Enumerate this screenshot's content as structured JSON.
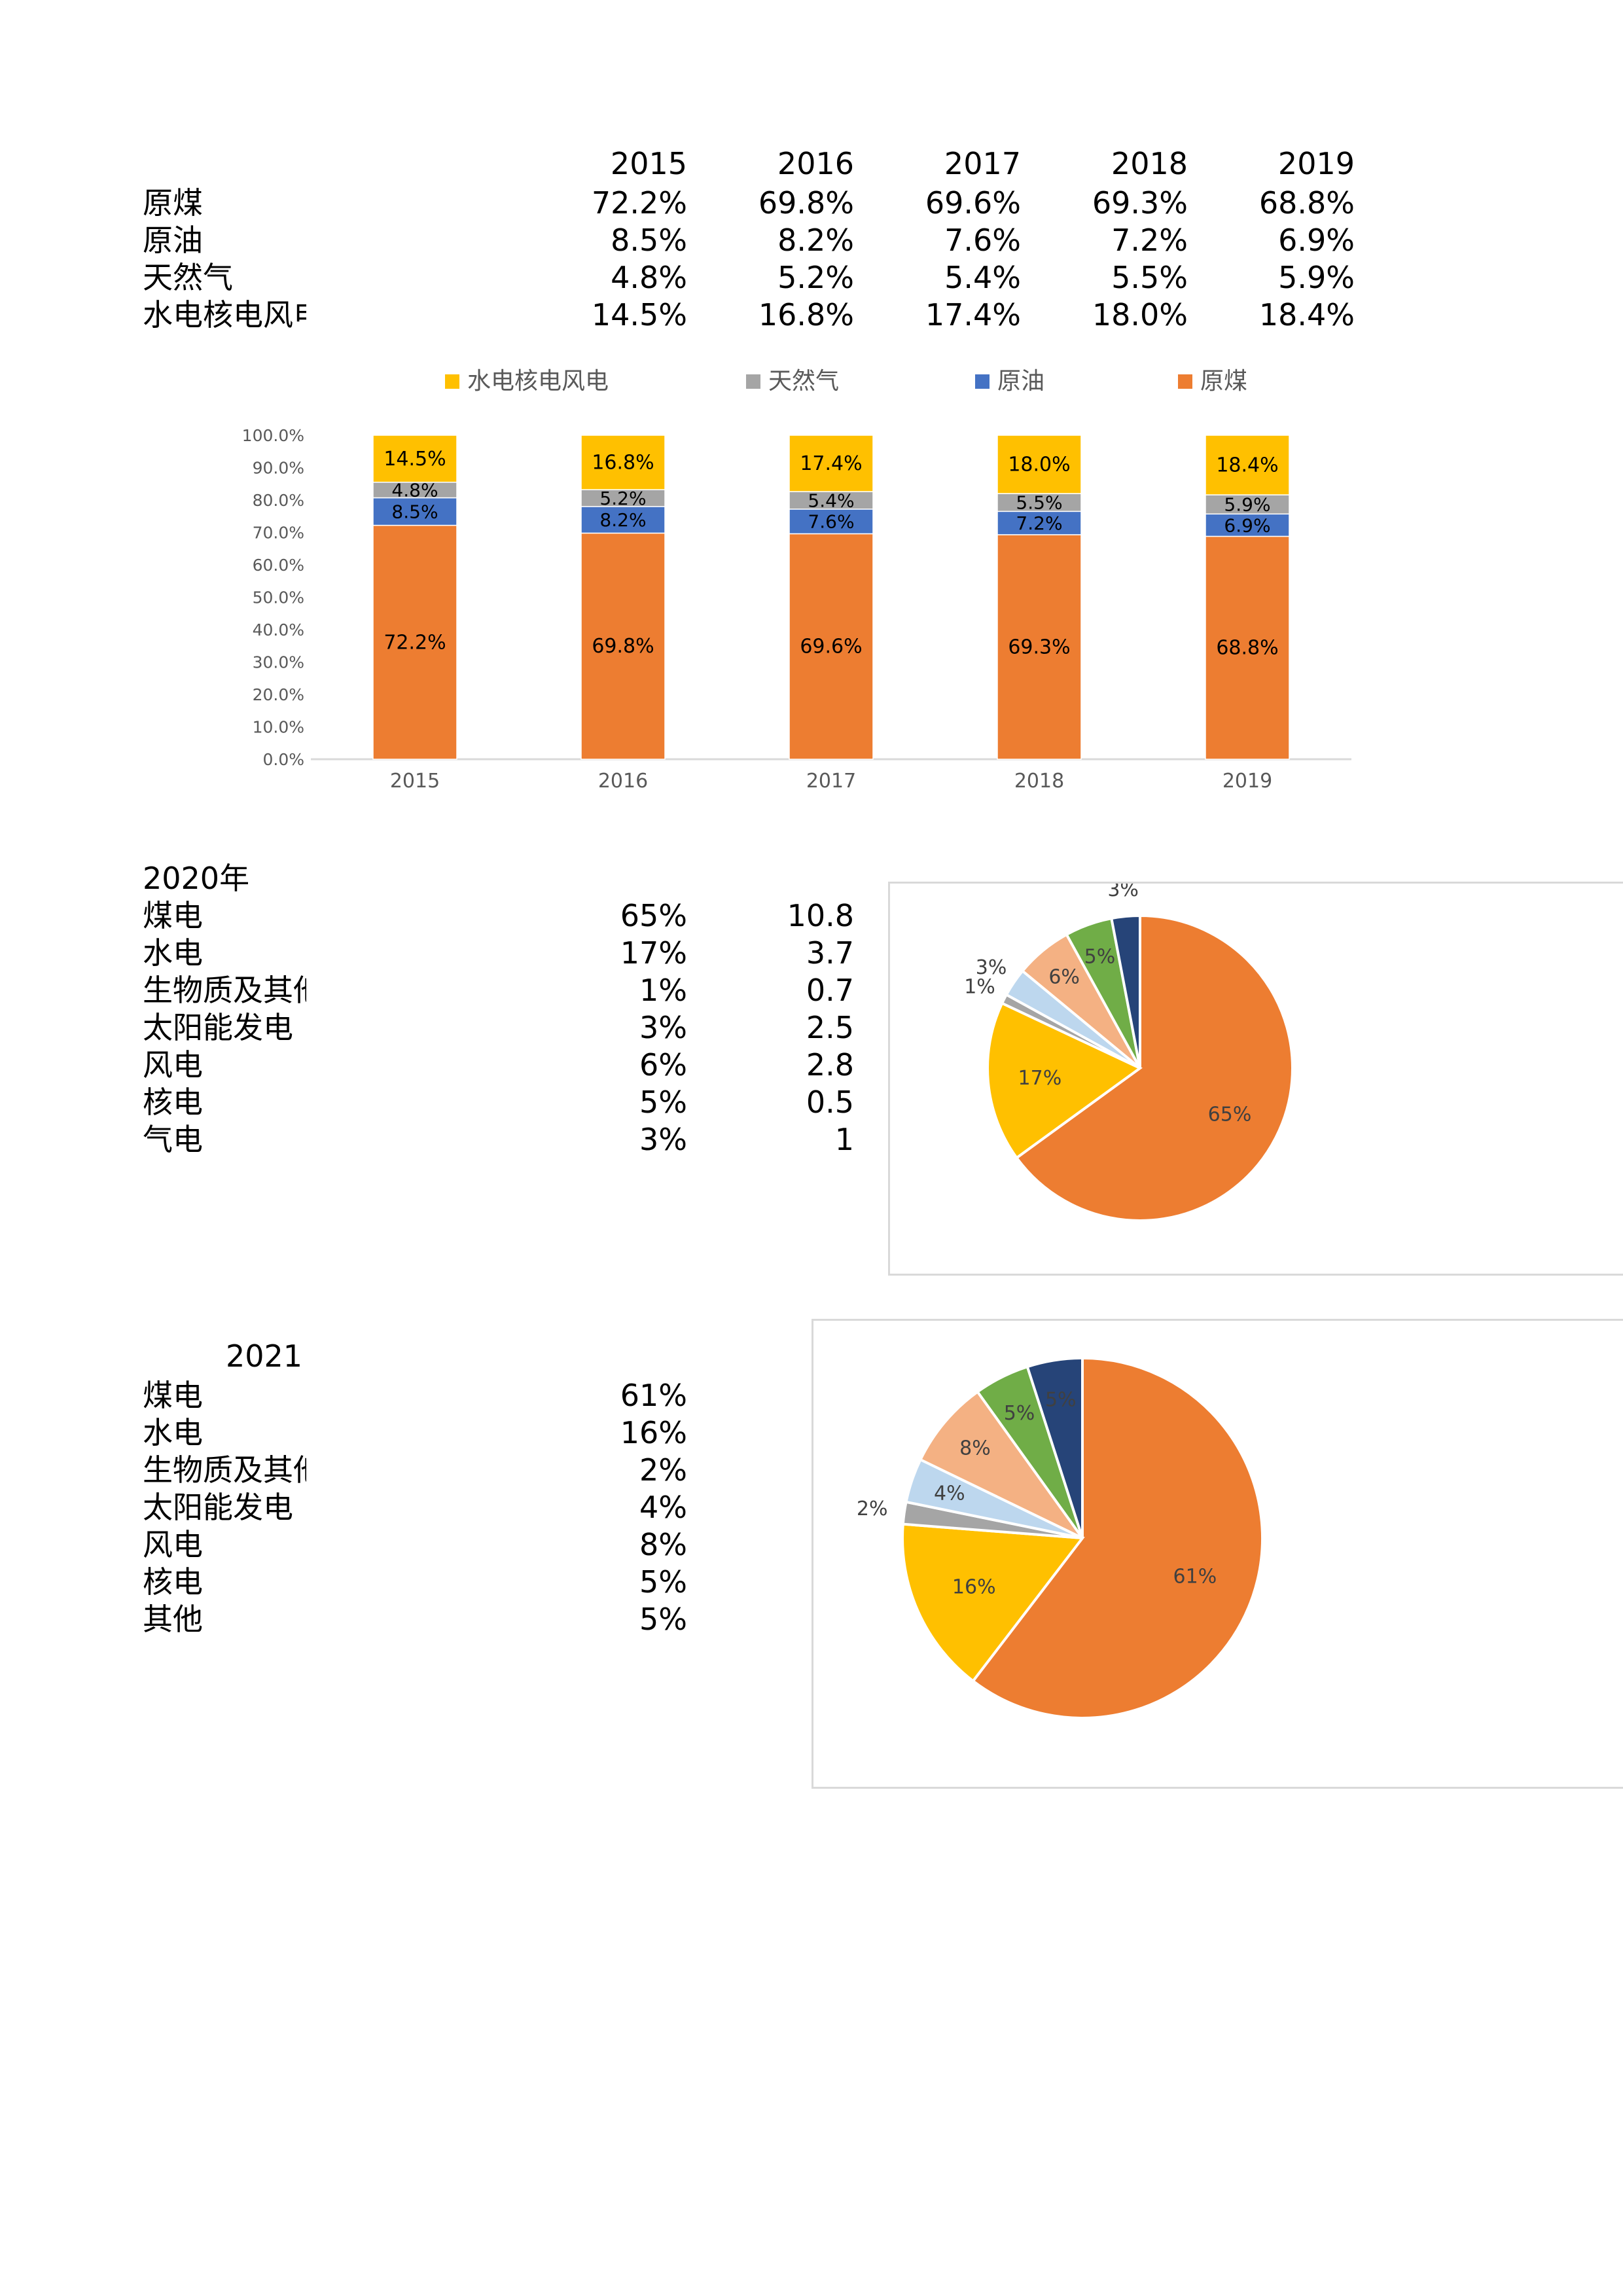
{
  "table1": {
    "years": [
      "2015",
      "2016",
      "2017",
      "2018",
      "2019"
    ],
    "rows": [
      {
        "label": "原煤",
        "values": [
          "72.2%",
          "69.8%",
          "69.6%",
          "69.3%",
          "68.8%"
        ]
      },
      {
        "label": "原油",
        "values": [
          "8.5%",
          "8.2%",
          "7.6%",
          "7.2%",
          "6.9%"
        ]
      },
      {
        "label": "天然气",
        "values": [
          "4.8%",
          "5.2%",
          "5.4%",
          "5.5%",
          "5.9%"
        ]
      },
      {
        "label": "水电核电风电",
        "values": [
          "14.5%",
          "16.8%",
          "17.4%",
          "18.0%",
          "18.4%"
        ]
      }
    ]
  },
  "table2": {
    "title": "2020年",
    "rows": [
      {
        "label": "煤电",
        "pct": "65%",
        "val": "10.8"
      },
      {
        "label": "水电",
        "pct": "17%",
        "val": "3.7"
      },
      {
        "label": "生物质及其他",
        "pct": "1%",
        "val": "0.7"
      },
      {
        "label": "太阳能发电",
        "pct": "3%",
        "val": "2.5"
      },
      {
        "label": "风电",
        "pct": "6%",
        "val": "2.8"
      },
      {
        "label": "核电",
        "pct": "5%",
        "val": "0.5"
      },
      {
        "label": "气电",
        "pct": "3%",
        "val": "1"
      }
    ]
  },
  "table3": {
    "title": "2021",
    "rows": [
      {
        "label": "煤电",
        "pct": "61%"
      },
      {
        "label": "水电",
        "pct": "16%"
      },
      {
        "label": "生物质及其他",
        "pct": "2%"
      },
      {
        "label": "太阳能发电",
        "pct": "4%"
      },
      {
        "label": "风电",
        "pct": "8%"
      },
      {
        "label": "核电",
        "pct": "5%"
      },
      {
        "label": "其他",
        "pct": "5%"
      }
    ]
  },
  "chart_data": [
    {
      "type": "bar",
      "stacked": true,
      "categories": [
        "2015",
        "2016",
        "2017",
        "2018",
        "2019"
      ],
      "series": [
        {
          "name": "原煤",
          "color": "#ED7D31",
          "values": [
            72.2,
            69.8,
            69.6,
            69.3,
            68.8
          ],
          "labels": [
            "72.2%",
            "69.8%",
            "69.6%",
            "69.3%",
            "68.8%"
          ]
        },
        {
          "name": "原油",
          "color": "#4472C4",
          "values": [
            8.5,
            8.2,
            7.6,
            7.2,
            6.9
          ],
          "labels": [
            "8.5%",
            "8.2%",
            "7.6%",
            "7.2%",
            "6.9%"
          ]
        },
        {
          "name": "天然气",
          "color": "#A5A5A5",
          "values": [
            4.8,
            5.2,
            5.4,
            5.5,
            5.9
          ],
          "labels": [
            "4.8%",
            "5.2%",
            "5.4%",
            "5.5%",
            "5.9%"
          ]
        },
        {
          "name": "水电核电风电",
          "color": "#FFC000",
          "values": [
            14.5,
            16.8,
            17.4,
            18.0,
            18.4
          ],
          "labels": [
            "14.5%",
            "16.8%",
            "17.4%",
            "18.0%",
            "18.4%"
          ]
        }
      ],
      "ylim": [
        0,
        100
      ],
      "yticks": [
        "0.0%",
        "10.0%",
        "20.0%",
        "30.0%",
        "40.0%",
        "50.0%",
        "60.0%",
        "70.0%",
        "80.0%",
        "90.0%",
        "100.0%"
      ],
      "legend": [
        "水电核电风电",
        "天然气",
        "原油",
        "原煤"
      ],
      "legend_position": "top",
      "grid": false
    },
    {
      "type": "pie",
      "slices": [
        {
          "label": "65%",
          "value": 65,
          "color": "#ED7D31"
        },
        {
          "label": "17%",
          "value": 17,
          "color": "#FFC000"
        },
        {
          "label": "1%",
          "value": 1,
          "color": "#A5A5A5"
        },
        {
          "label": "3%",
          "value": 3,
          "color": "#BDD7EE"
        },
        {
          "label": "6%",
          "value": 6,
          "color": "#F4B183"
        },
        {
          "label": "5%",
          "value": 5,
          "color": "#70AD47"
        },
        {
          "label": "3%",
          "value": 3,
          "color": "#264478"
        }
      ]
    },
    {
      "type": "pie",
      "slices": [
        {
          "label": "61%",
          "value": 61,
          "color": "#ED7D31"
        },
        {
          "label": "16%",
          "value": 16,
          "color": "#FFC000"
        },
        {
          "label": "2%",
          "value": 2,
          "color": "#A5A5A5"
        },
        {
          "label": "4%",
          "value": 4,
          "color": "#BDD7EE"
        },
        {
          "label": "8%",
          "value": 8,
          "color": "#F4B183"
        },
        {
          "label": "5%",
          "value": 5,
          "color": "#70AD47"
        },
        {
          "label": "5%",
          "value": 5,
          "color": "#264478"
        }
      ]
    }
  ]
}
